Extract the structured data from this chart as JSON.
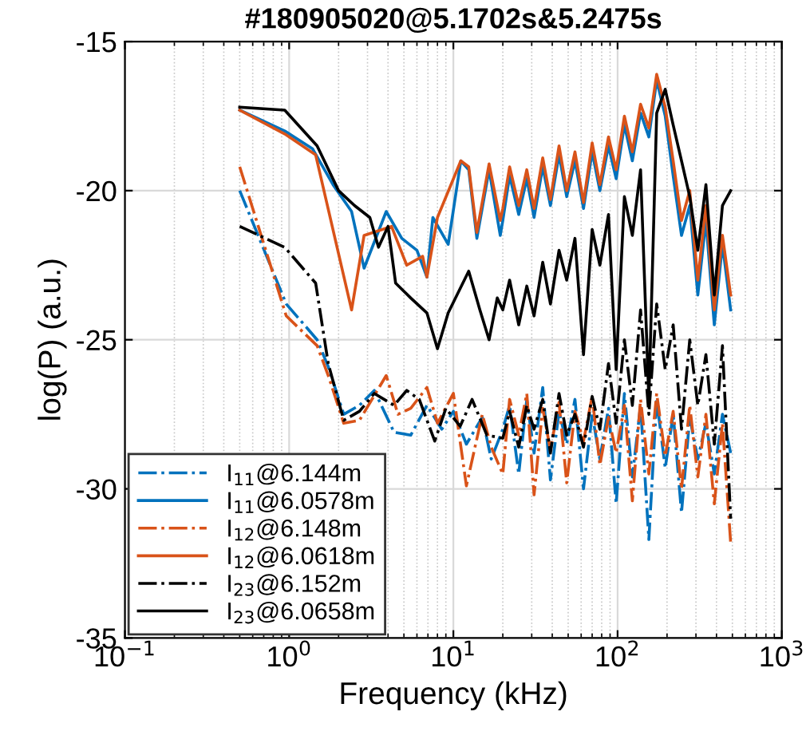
{
  "chart_data": {
    "type": "line",
    "title": "#180905020@5.1702s&5.2475s",
    "xlabel": "Frequency (kHz)",
    "ylabel": "log(P) (a.u.)",
    "log": "x",
    "xlim": [
      0.1,
      1000
    ],
    "ylim": [
      -35,
      -15
    ],
    "xticks": [
      {
        "value": 0.1,
        "label": "10$^{−1}$"
      },
      {
        "value": 1,
        "label": "10$^{0}$"
      },
      {
        "value": 10,
        "label": "10$^{1}$"
      },
      {
        "value": 100,
        "label": "10$^{2}$"
      },
      {
        "value": 1000,
        "label": "10$^{3}$"
      }
    ],
    "yticks": [
      -35,
      -30,
      -25,
      -20,
      -15
    ],
    "grid": true,
    "legend": "bottom left",
    "series": [
      {
        "name": "I$_{11}$@6.144m",
        "color": "#0072bd",
        "line_style": "dashdot",
        "x": [
          0.5,
          0.96,
          1.48,
          1.73,
          2.15,
          2.68,
          3.3,
          4.35,
          5.5,
          6.9,
          8.5,
          10,
          12,
          15,
          17,
          20,
          22,
          25,
          28,
          31,
          35,
          39,
          44,
          49,
          55,
          62,
          70,
          78,
          88,
          98,
          110,
          123,
          138,
          155,
          173,
          195,
          218,
          245,
          275,
          308,
          345,
          388,
          435,
          488
        ],
        "values": [
          -20.0,
          -23.8,
          -25.0,
          -25.9,
          -27.5,
          -27.2,
          -26.7,
          -28.1,
          -28.2,
          -27.2,
          -28.0,
          -27.4,
          -28.5,
          -27.6,
          -29.0,
          -28.0,
          -27.2,
          -29.5,
          -27.0,
          -28.8,
          -26.6,
          -29.7,
          -27.4,
          -28.5,
          -27.0,
          -30.0,
          -27.5,
          -29.0,
          -27.3,
          -30.5,
          -26.8,
          -29.6,
          -27.2,
          -31.7,
          -27.0,
          -29.3,
          -27.5,
          -30.8,
          -27.6,
          -29.0,
          -27.8,
          -29.5,
          -27.5,
          -28.8
        ]
      },
      {
        "name": "I$_{11}$@6.0578m",
        "color": "#0072bd",
        "line_style": "solid",
        "x": [
          0.5,
          0.94,
          1.39,
          1.85,
          2.4,
          2.86,
          3.9,
          4.85,
          6.0,
          6.9,
          7.5,
          9.3,
          11.1,
          12.4,
          13.9,
          16.5,
          19.3,
          20,
          22,
          25,
          28,
          31,
          35,
          39,
          44,
          49,
          55,
          62,
          70,
          78,
          88,
          98,
          110,
          123,
          138,
          155,
          173,
          195,
          218,
          245,
          275,
          308,
          345,
          388,
          435,
          488
        ],
        "values": [
          -17.3,
          -18.0,
          -18.6,
          -19.8,
          -20.7,
          -22.6,
          -20.7,
          -21.6,
          -22.0,
          -22.9,
          -20.9,
          -21.8,
          -19.0,
          -19.3,
          -21.6,
          -19.3,
          -21.5,
          -21.0,
          -19.5,
          -20.8,
          -19.6,
          -20.9,
          -19.2,
          -20.5,
          -18.8,
          -20.2,
          -19.0,
          -20.6,
          -18.7,
          -20.0,
          -18.5,
          -19.6,
          -17.8,
          -19.0,
          -17.4,
          -18.2,
          -16.3,
          -17.5,
          -19.5,
          -21.5,
          -20.5,
          -23.5,
          -21.0,
          -24.5,
          -21.8,
          -24.0
        ]
      },
      {
        "name": "I$_{12}$@6.148m",
        "color": "#d95319",
        "line_style": "dashdot",
        "x": [
          0.5,
          0.96,
          1.48,
          1.73,
          2.15,
          2.68,
          3.9,
          4.6,
          5.5,
          6.9,
          8.0,
          10,
          12,
          15,
          17,
          20,
          22,
          25,
          28,
          31,
          35,
          39,
          44,
          49,
          55,
          62,
          70,
          78,
          88,
          98,
          110,
          123,
          138,
          155,
          173,
          195,
          218,
          245,
          275,
          308,
          345,
          388,
          435,
          488
        ],
        "values": [
          -19.2,
          -24.2,
          -25.2,
          -26.2,
          -27.8,
          -27.7,
          -26.2,
          -27.5,
          -27.3,
          -26.6,
          -27.8,
          -26.8,
          -29.9,
          -27.5,
          -28.6,
          -29.5,
          -27.0,
          -28.2,
          -26.8,
          -30.2,
          -27.3,
          -28.7,
          -27.1,
          -29.8,
          -27.4,
          -28.4,
          -26.9,
          -29.2,
          -27.6,
          -28.8,
          -27.2,
          -30.4,
          -27.0,
          -29.5,
          -26.8,
          -28.9,
          -27.4,
          -30.0,
          -27.2,
          -29.6,
          -27.5,
          -30.5,
          -27.8,
          -31.8
        ]
      },
      {
        "name": "I$_{12}$@6.0618m",
        "color": "#d95319",
        "line_style": "solid",
        "x": [
          0.5,
          0.94,
          1.45,
          2.4,
          2.86,
          4.2,
          5.2,
          6.5,
          6.9,
          8.0,
          11.1,
          12.4,
          13.9,
          16.5,
          19.3,
          20,
          22,
          25,
          28,
          31,
          35,
          39,
          44,
          49,
          55,
          62,
          70,
          78,
          88,
          98,
          110,
          123,
          138,
          155,
          173,
          195,
          218,
          245,
          275,
          308,
          345,
          388,
          435,
          488
        ],
        "values": [
          -17.3,
          -18.1,
          -18.8,
          -24.0,
          -21.5,
          -21.2,
          -22.5,
          -22.2,
          -22.9,
          -20.9,
          -19.0,
          -19.2,
          -21.4,
          -19.1,
          -21.0,
          -20.6,
          -19.2,
          -20.5,
          -19.3,
          -20.6,
          -18.9,
          -20.3,
          -18.5,
          -20.0,
          -18.7,
          -20.4,
          -18.4,
          -19.8,
          -18.2,
          -19.3,
          -17.5,
          -18.7,
          -17.1,
          -17.9,
          -16.1,
          -17.2,
          -19.0,
          -21.0,
          -20.0,
          -23.0,
          -20.5,
          -24.0,
          -21.5,
          -23.5
        ]
      },
      {
        "name": "I$_{23}$@6.152m",
        "color": "#000000",
        "line_style": "dashdot",
        "x": [
          0.5,
          0.94,
          1.45,
          1.73,
          2.15,
          2.68,
          3.3,
          4.35,
          5.2,
          6.2,
          7.7,
          9,
          11,
          13,
          16,
          20,
          22,
          25,
          28,
          31,
          35,
          39,
          44,
          49,
          55,
          62,
          70,
          78,
          88,
          98,
          110,
          123,
          138,
          155,
          173,
          195,
          218,
          245,
          275,
          308,
          345,
          388,
          435,
          488
        ],
        "values": [
          -21.2,
          -21.9,
          -23.1,
          -25.8,
          -27.7,
          -27.4,
          -26.8,
          -27.2,
          -26.7,
          -27.0,
          -28.4,
          -27.3,
          -27.9,
          -27.0,
          -28.2,
          -28.3,
          -27.4,
          -28.6,
          -27.2,
          -28.0,
          -27.0,
          -28.8,
          -26.8,
          -28.2,
          -27.5,
          -28.6,
          -26.9,
          -28.0,
          -25.8,
          -27.8,
          -25.0,
          -27.2,
          -24.0,
          -27.5,
          -23.8,
          -26.0,
          -24.5,
          -28.0,
          -25.0,
          -27.2,
          -25.5,
          -28.5,
          -25.2,
          -31.0
        ]
      },
      {
        "name": "I$_{23}$@6.0658m",
        "color": "#000000",
        "line_style": "solid",
        "x": [
          0.5,
          0.94,
          1.48,
          2.0,
          2.5,
          3.1,
          3.5,
          4.0,
          4.45,
          5.5,
          6.9,
          8.0,
          9.3,
          12.4,
          14.5,
          16.5,
          18.5,
          20,
          22,
          25,
          28,
          31,
          35,
          39,
          44,
          49,
          55,
          62,
          70,
          78,
          88,
          98,
          110,
          123,
          138,
          155,
          173,
          195,
          218,
          245,
          275,
          308,
          345,
          388,
          435,
          488
        ],
        "values": [
          -17.2,
          -17.3,
          -18.5,
          -20.0,
          -20.5,
          -20.9,
          -21.9,
          -21.2,
          -23.1,
          -23.6,
          -24.1,
          -25.3,
          -24.1,
          -22.7,
          -24.0,
          -25.0,
          -23.6,
          -24.0,
          -23.0,
          -24.5,
          -23.2,
          -24.2,
          -22.4,
          -23.8,
          -22.0,
          -23.0,
          -21.6,
          -25.5,
          -21.3,
          -22.5,
          -20.8,
          -26.0,
          -20.2,
          -21.5,
          -19.3,
          -27.0,
          -17.4,
          -16.6,
          -17.8,
          -19.0,
          -20.2,
          -22.0,
          -19.8,
          -23.5,
          -20.5,
          -20.0
        ]
      }
    ]
  }
}
